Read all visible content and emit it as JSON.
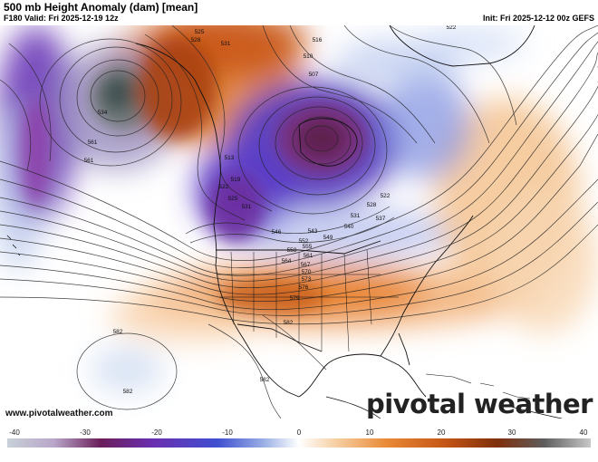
{
  "header": {
    "title": "500 mb Height Anomaly (dam) [mean]",
    "valid": "F180 Valid: Fri 2025-12-19 12z",
    "init": "Init: Fri 2025-12-12 00z GEFS"
  },
  "footer": {
    "credit": "www.pivotalweather.com",
    "brand": "pivotal weather"
  },
  "colorbar": {
    "min": -40,
    "max": 40,
    "tick_labels": [
      "-40",
      "-30",
      "-20",
      "-10",
      "0",
      "10",
      "20",
      "30",
      "40"
    ],
    "colors": {
      "deep_negative": "#6a1f5a",
      "purple": "#6a2fb0",
      "blue": "#3f4fd0",
      "light_blue": "#c8daf0",
      "neutral": "#ffffff",
      "light_orange": "#f7d2a8",
      "orange": "#e27a26",
      "dark_orange": "#a8400e",
      "deep_positive": "#c8c8c8"
    }
  },
  "contour_labels": [
    {
      "id": "aleutian-low-528",
      "text": "528"
    },
    {
      "id": "aleutian-low-525",
      "text": "525"
    },
    {
      "id": "aleutian-low-531",
      "text": "531"
    },
    {
      "id": "north-pacific-534",
      "text": "534"
    },
    {
      "id": "north-pacific-561-a",
      "text": "561"
    },
    {
      "id": "north-pacific-561-b",
      "text": "561"
    },
    {
      "id": "west-coast-513",
      "text": "513"
    },
    {
      "id": "west-coast-519",
      "text": "519"
    },
    {
      "id": "west-coast-522",
      "text": "522"
    },
    {
      "id": "west-coast-525",
      "text": "525"
    },
    {
      "id": "west-coast-531",
      "text": "531"
    },
    {
      "id": "hudson-low-516",
      "text": "516"
    },
    {
      "id": "hudson-low-510",
      "text": "510"
    },
    {
      "id": "hudson-low-507",
      "text": "507"
    },
    {
      "id": "canada-522",
      "text": "522"
    },
    {
      "id": "canada-528",
      "text": "528"
    },
    {
      "id": "canada-531",
      "text": "531"
    },
    {
      "id": "canada-537",
      "text": "537"
    },
    {
      "id": "canada-540",
      "text": "540"
    },
    {
      "id": "canada-543",
      "text": "543"
    },
    {
      "id": "plains-546",
      "text": "546"
    },
    {
      "id": "plains-549",
      "text": "549"
    },
    {
      "id": "plains-552",
      "text": "552"
    },
    {
      "id": "plains-555",
      "text": "555"
    },
    {
      "id": "plains-558",
      "text": "558"
    },
    {
      "id": "plains-561",
      "text": "561"
    },
    {
      "id": "plains-564",
      "text": "564"
    },
    {
      "id": "plains-567",
      "text": "567"
    },
    {
      "id": "plains-570",
      "text": "570"
    },
    {
      "id": "plains-573",
      "text": "573"
    },
    {
      "id": "plains-576",
      "text": "576"
    },
    {
      "id": "plains-579",
      "text": "579"
    },
    {
      "id": "south-582",
      "text": "582"
    },
    {
      "id": "pacific-high-582-a",
      "text": "582"
    },
    {
      "id": "pacific-high-582-b",
      "text": "582"
    },
    {
      "id": "mexico-582",
      "text": "582"
    },
    {
      "id": "greenland-522",
      "text": "522"
    }
  ]
}
